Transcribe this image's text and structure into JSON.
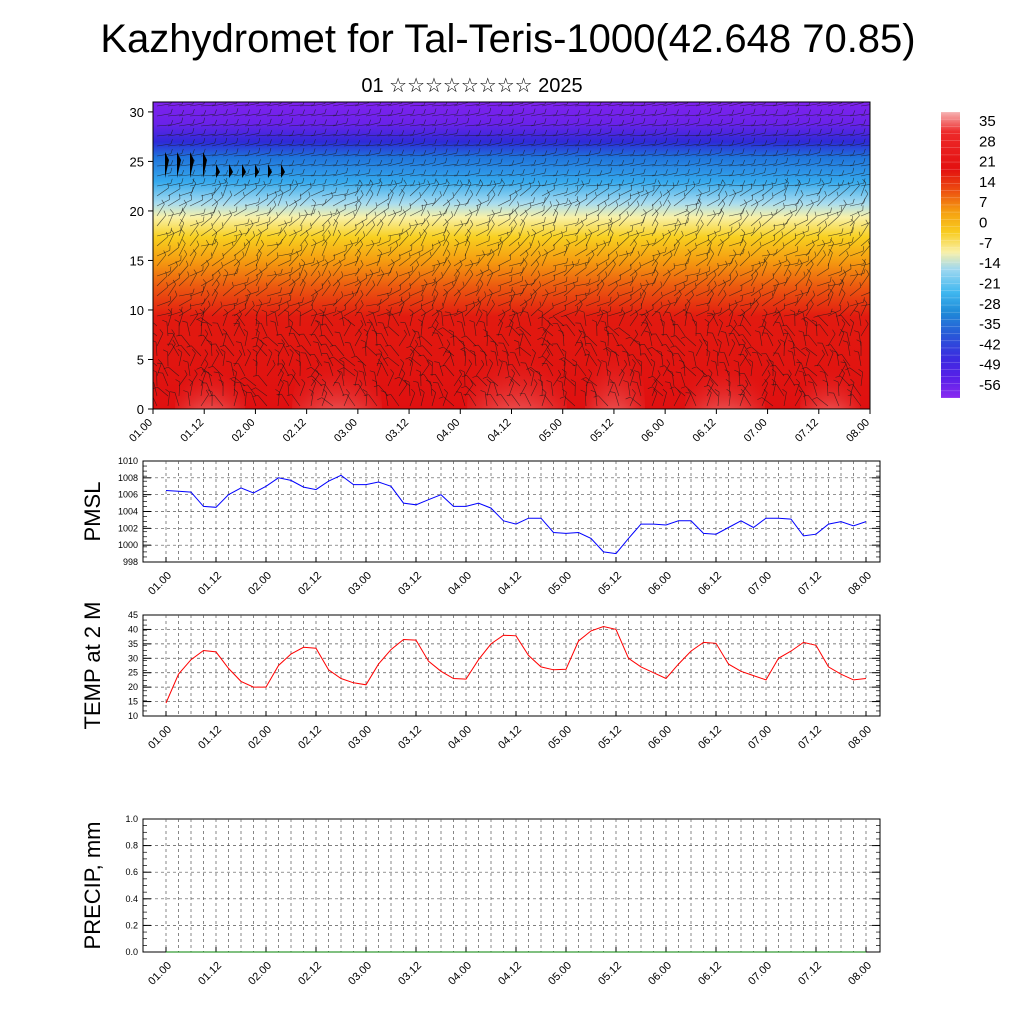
{
  "title": "Kazhydromet for Tal-Teris-1000(42.648 70.85)",
  "subtitle": "01 ☆☆☆☆☆☆☆☆ 2025",
  "chart_data": [
    {
      "type": "heatmap",
      "description_of_field": "vertical cross-section temperature with wind barbs",
      "x_ticks": [
        "01.00",
        "01.12",
        "02.00",
        "02.12",
        "03.00",
        "03.12",
        "04.00",
        "04.12",
        "05.00",
        "05.12",
        "06.00",
        "06.12",
        "07.00",
        "07.12",
        "08.00"
      ],
      "y_ticks": [
        0,
        5,
        10,
        15,
        20,
        25,
        30
      ],
      "ylim": [
        0,
        31
      ],
      "colorbar": {
        "labels": [
          "35",
          "28",
          "21",
          "14",
          "7",
          "0",
          "-7",
          "-14",
          "-21",
          "-28",
          "-35",
          "-42",
          "-49",
          "-56"
        ],
        "colors": [
          "#f6b3b3",
          "#ee2a2a",
          "#e31010",
          "#ec4a10",
          "#f5a010",
          "#f8cc20",
          "#f9f0a8",
          "#9fd8f0",
          "#40b8f0",
          "#1f8ad8",
          "#2858d8",
          "#3a2ce0",
          "#5820e8",
          "#8a2af0"
        ]
      }
    },
    {
      "type": "line",
      "ylabel": "PMSL",
      "ylim": [
        998,
        1010
      ],
      "y_ticks": [
        998,
        1000,
        1002,
        1004,
        1006,
        1008,
        1010
      ],
      "x_ticks": [
        "01.00",
        "01.12",
        "02.00",
        "02.12",
        "03.00",
        "03.12",
        "04.00",
        "04.12",
        "05.00",
        "05.12",
        "06.00",
        "06.12",
        "07.00",
        "07.12",
        "08.00"
      ],
      "color": "#0000ff",
      "values": [
        1006.5,
        1006.4,
        1006.3,
        1004.6,
        1004.5,
        1006.0,
        1006.8,
        1006.2,
        1007.0,
        1008.0,
        1007.7,
        1006.9,
        1006.6,
        1007.6,
        1008.3,
        1007.2,
        1007.2,
        1007.5,
        1007.0,
        1005.0,
        1004.8,
        1005.4,
        1006.0,
        1004.6,
        1004.6,
        1005.0,
        1004.4,
        1002.9,
        1002.5,
        1003.2,
        1003.2,
        1001.5,
        1001.4,
        1001.5,
        1000.8,
        999.2,
        999.0,
        1000.8,
        1002.5,
        1002.5,
        1002.4,
        1002.9,
        1002.9,
        1001.4,
        1001.3,
        1002.1,
        1002.9,
        1002.1,
        1003.2,
        1003.2,
        1003.1,
        1001.1,
        1001.3,
        1002.5,
        1002.8,
        1002.3,
        1002.8
      ]
    },
    {
      "type": "line",
      "ylabel": "TEMP at 2 M",
      "ylim": [
        10,
        45
      ],
      "y_ticks": [
        10,
        15,
        20,
        25,
        30,
        35,
        40,
        45
      ],
      "x_ticks": [
        "01.00",
        "01.12",
        "02.00",
        "02.12",
        "03.00",
        "03.12",
        "04.00",
        "04.12",
        "05.00",
        "05.12",
        "06.00",
        "06.12",
        "07.00",
        "07.12",
        "08.00"
      ],
      "color": "#ff0000",
      "values": [
        14.5,
        24.5,
        29.5,
        32.7,
        32.2,
        26.5,
        22.0,
        20.0,
        20.0,
        27.5,
        31.5,
        33.8,
        33.5,
        26.0,
        23.0,
        21.5,
        20.8,
        28.0,
        33.0,
        36.5,
        36.3,
        29.0,
        25.5,
        23.0,
        22.8,
        29.5,
        35.0,
        38.0,
        37.8,
        31.0,
        27.0,
        26.0,
        26.2,
        36.0,
        39.5,
        41.0,
        40.0,
        30.0,
        27.0,
        25.0,
        23.0,
        28.0,
        32.5,
        35.5,
        35.2,
        28.0,
        25.5,
        24.0,
        22.5,
        30.0,
        32.5,
        35.5,
        34.5,
        27.0,
        24.5,
        22.5,
        23.0
      ]
    },
    {
      "type": "line",
      "ylabel": "PRECIP, mm",
      "ylim": [
        0,
        1
      ],
      "y_ticks": [
        "0.0",
        "0.2",
        "0.4",
        "0.6",
        "0.8",
        "1.0"
      ],
      "x_ticks": [
        "01.00",
        "01.12",
        "02.00",
        "02.12",
        "03.00",
        "03.12",
        "04.00",
        "04.12",
        "05.00",
        "05.12",
        "06.00",
        "06.12",
        "07.00",
        "07.12",
        "08.00"
      ],
      "color": "#008000",
      "values": [
        0,
        0,
        0,
        0,
        0,
        0,
        0,
        0,
        0,
        0,
        0,
        0,
        0,
        0,
        0,
        0,
        0,
        0,
        0,
        0,
        0,
        0,
        0,
        0,
        0,
        0,
        0,
        0,
        0,
        0,
        0,
        0,
        0,
        0,
        0,
        0,
        0,
        0,
        0,
        0,
        0,
        0,
        0,
        0,
        0,
        0,
        0,
        0,
        0,
        0,
        0,
        0,
        0,
        0,
        0,
        0,
        0
      ]
    }
  ]
}
